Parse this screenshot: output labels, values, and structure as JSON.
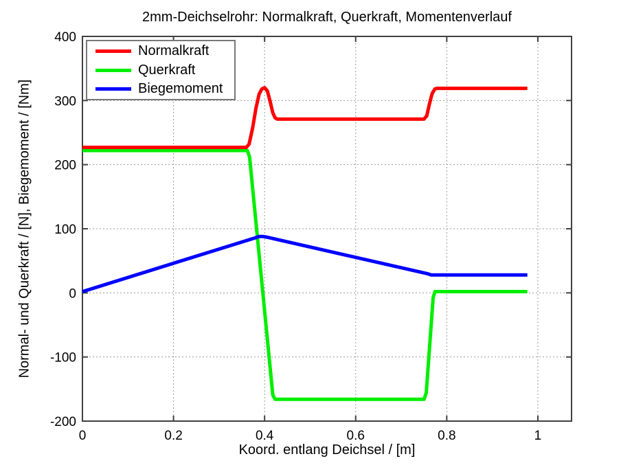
{
  "chart_data": {
    "type": "line",
    "title": "2mm-Deichselrohr: Normalkraft, Querkraft, Momentenverlauf",
    "xlabel": "Koord. entlang Deichsel / [m]",
    "ylabel": "Normal- und Querkraft / [N], Biegemoment / [Nm]",
    "xlim": [
      0,
      1.074
    ],
    "ylim": [
      -200,
      400
    ],
    "x_ticks": [
      0,
      0.2,
      0.4,
      0.6,
      0.8,
      1
    ],
    "x_tick_labels": [
      "0",
      "0.2",
      "0.4",
      "0.6",
      "0.8",
      "1"
    ],
    "y_ticks": [
      -200,
      -100,
      0,
      100,
      200,
      300,
      400
    ],
    "y_tick_labels": [
      "-200",
      "-100",
      "0",
      "100",
      "200",
      "300",
      "400"
    ],
    "grid": true,
    "grid_style": "dotted",
    "legend_position": "top-left",
    "axis_color": "#404040",
    "grid_color": "#9a9a9a",
    "legend_border_color": "#787878",
    "series": [
      {
        "name": "Normalkraft",
        "color": "#ff0000",
        "points": [
          [
            0,
            227
          ],
          [
            0.36,
            227
          ],
          [
            0.366,
            232
          ],
          [
            0.374,
            258
          ],
          [
            0.381,
            288
          ],
          [
            0.388,
            310
          ],
          [
            0.394,
            318
          ],
          [
            0.4,
            320
          ],
          [
            0.406,
            315
          ],
          [
            0.412,
            299
          ],
          [
            0.418,
            281
          ],
          [
            0.423,
            273
          ],
          [
            0.428,
            271
          ],
          [
            0.75,
            271
          ],
          [
            0.756,
            276
          ],
          [
            0.762,
            295
          ],
          [
            0.768,
            311
          ],
          [
            0.774,
            318
          ],
          [
            0.778,
            319
          ],
          [
            0.977,
            319
          ]
        ]
      },
      {
        "name": "Querkraft",
        "color": "#00ee00",
        "points": [
          [
            0,
            222
          ],
          [
            0.362,
            222
          ],
          [
            0.367,
            212
          ],
          [
            0.418,
            -159
          ],
          [
            0.423,
            -166
          ],
          [
            0.75,
            -166
          ],
          [
            0.755,
            -156
          ],
          [
            0.77,
            -8
          ],
          [
            0.774,
            2
          ],
          [
            0.977,
            2
          ]
        ]
      },
      {
        "name": "Biegemoment",
        "color": "#0000ff",
        "points": [
          [
            0,
            2
          ],
          [
            0.38,
            86
          ],
          [
            0.388,
            88
          ],
          [
            0.396,
            88
          ],
          [
            0.404,
            87
          ],
          [
            0.757,
            30
          ],
          [
            0.766,
            28
          ],
          [
            0.977,
            28
          ]
        ]
      }
    ]
  }
}
